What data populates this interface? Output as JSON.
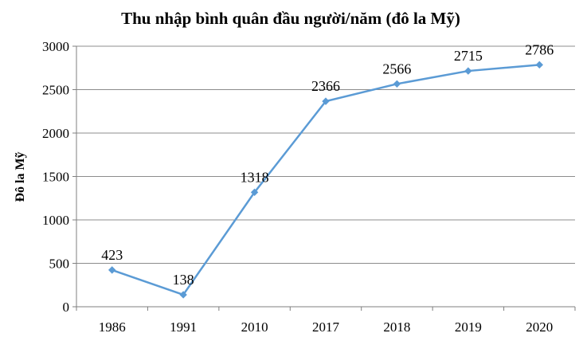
{
  "chart_data": {
    "type": "line",
    "title": "Thu nhập bình quân đầu người/năm (đô la Mỹ)",
    "xlabel": "",
    "ylabel": "Đô la  Mỹ",
    "categories": [
      "1986",
      "1991",
      "2010",
      "2017",
      "2018",
      "2019",
      "2020"
    ],
    "series": [
      {
        "values": [
          423,
          138,
          1318,
          2366,
          2566,
          2715,
          2786
        ]
      }
    ],
    "data_labels": [
      "423",
      "138",
      "1318",
      "2366",
      "2566",
      "2715",
      "2786"
    ],
    "ylim": [
      0,
      3000
    ],
    "yticks": [
      0,
      500,
      1000,
      1500,
      2000,
      2500,
      3000
    ],
    "ytick_labels": [
      "0",
      "500",
      "1000",
      "1500",
      "2000",
      "2500",
      "3000"
    ],
    "grid": true,
    "legend": "none",
    "line_color": "#5b9bd5"
  }
}
